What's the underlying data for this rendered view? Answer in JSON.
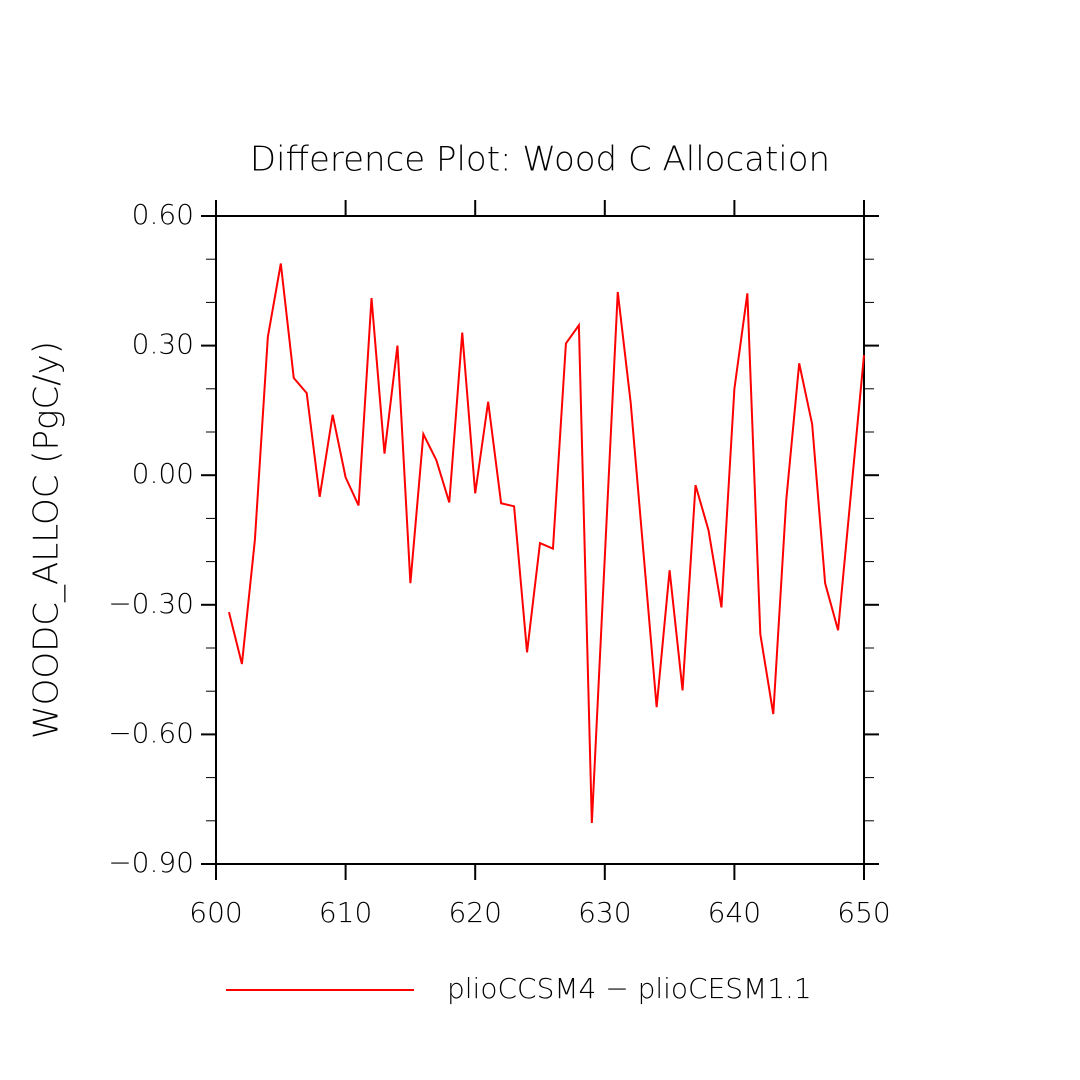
{
  "chart_data": {
    "type": "line",
    "title": "Difference Plot: Wood C Allocation",
    "y_label": "WOODC_ALLOC  (PgC/y)",
    "x": [
      601,
      602,
      603,
      604,
      605,
      606,
      607,
      608,
      609,
      610,
      611,
      612,
      613,
      614,
      615,
      616,
      617,
      618,
      619,
      620,
      621,
      622,
      623,
      624,
      625,
      626,
      627,
      628,
      629,
      630,
      631,
      632,
      633,
      634,
      635,
      636,
      637,
      638,
      639,
      640,
      641,
      642,
      643,
      644,
      645,
      646,
      647,
      648,
      649,
      650
    ],
    "series": [
      {
        "name": "plioCCSM4 − plioCESM1.1",
        "color": "#ff0000",
        "values": [
          -0.317,
          -0.437,
          -0.15,
          0.32,
          0.49,
          0.225,
          0.19,
          -0.05,
          0.14,
          -0.005,
          -0.07,
          0.41,
          0.05,
          0.3,
          -0.25,
          0.095,
          0.035,
          -0.063,
          0.33,
          -0.042,
          0.17,
          -0.065,
          -0.072,
          -0.41,
          -0.157,
          -0.17,
          0.305,
          0.347,
          -0.805,
          -0.19,
          0.424,
          0.167,
          -0.185,
          -0.537,
          -0.22,
          -0.498,
          -0.023,
          -0.127,
          -0.306,
          0.2,
          0.421,
          -0.368,
          -0.553,
          -0.058,
          0.259,
          0.118,
          -0.25,
          -0.359,
          -0.04,
          0.278
        ]
      }
    ],
    "xlim": [
      600,
      650
    ],
    "xticks": [
      600,
      610,
      620,
      630,
      640,
      650
    ],
    "ylim": [
      -0.9,
      0.6
    ],
    "yticks": [
      {
        "value": -0.9,
        "label": "−0.90"
      },
      {
        "value": -0.6,
        "label": "−0.60"
      },
      {
        "value": -0.3,
        "label": "−0.30"
      },
      {
        "value": 0,
        "label": "0.00"
      },
      {
        "value": 0.3,
        "label": "0.30"
      },
      {
        "value": 0.6,
        "label": "0.60"
      }
    ],
    "yminorticks": [
      -0.8,
      -0.7,
      -0.5,
      -0.4,
      -0.2,
      -0.1,
      0.1,
      0.2,
      0.4,
      0.5
    ],
    "legend": "bottom"
  }
}
